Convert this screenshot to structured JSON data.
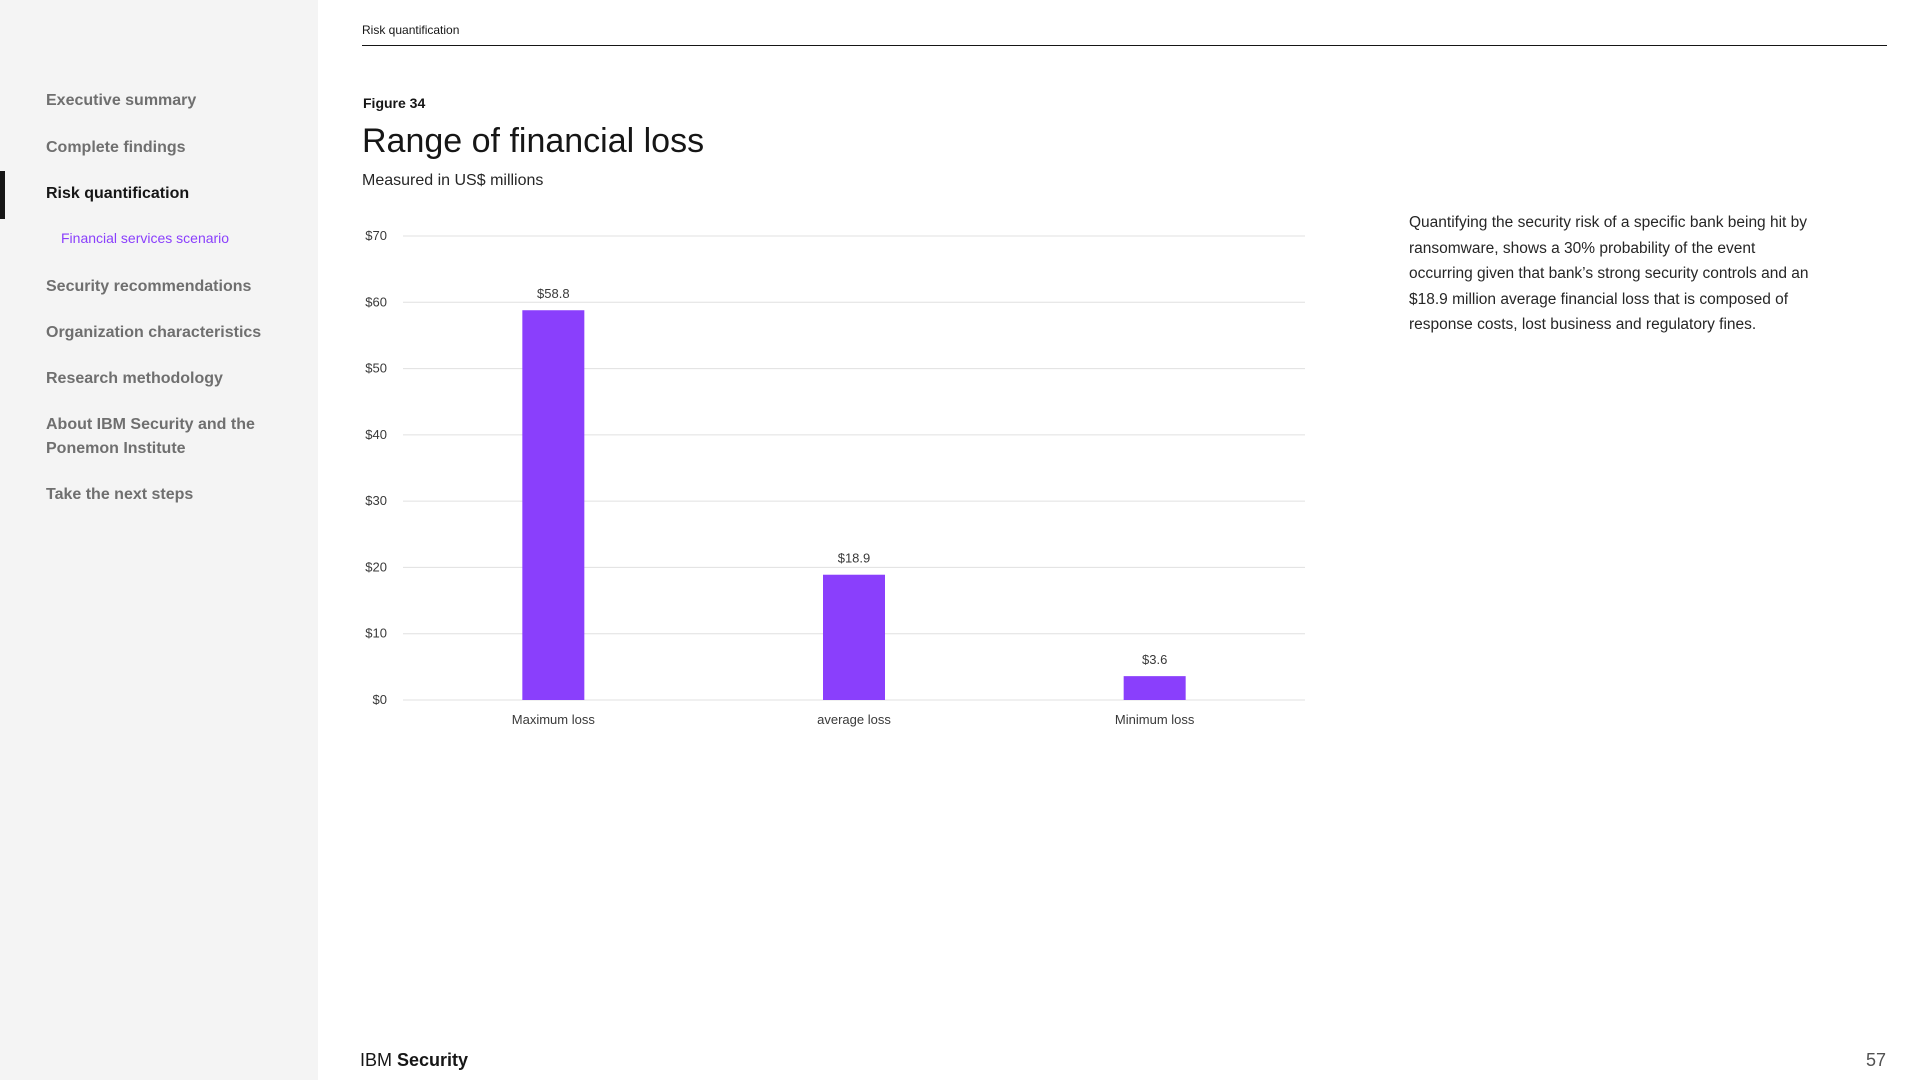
{
  "sidebar": {
    "items": [
      {
        "label": "Executive summary"
      },
      {
        "label": "Complete findings"
      },
      {
        "label": "Risk quantification"
      },
      {
        "label": "Financial services scenario"
      },
      {
        "label": "Security recommendations"
      },
      {
        "label": "Organization characteristics"
      },
      {
        "label": "Research methodology"
      },
      {
        "label": "About IBM Security and the Ponemon Institute"
      },
      {
        "label": "Take the next steps"
      }
    ]
  },
  "header": {
    "breadcrumb": "Risk quantification"
  },
  "figure": {
    "label": "Figure 34"
  },
  "description": "Quantifying the security risk of a specific bank being hit by ransomware, shows a 30% probability of the event occurring given that bank’s strong security controls and an $18.9 million average financial loss that is composed of response costs, lost business and regulatory fines.",
  "footer": {
    "logo_light": "IBM ",
    "logo_bold": "Security",
    "page_number": "57"
  },
  "colors": {
    "bar": "#8a3ffc",
    "active_nav": "#161616",
    "sub_nav": "#8a3ffc",
    "grid": "#e0e0e0"
  },
  "chart_data": {
    "type": "bar",
    "title": "Range of financial loss",
    "subtitle": "Measured in US$ millions",
    "categories": [
      "Maximum loss",
      "average loss",
      "Minimum loss"
    ],
    "values": [
      58.8,
      18.9,
      3.6
    ],
    "data_labels": [
      "$58.8",
      "$18.9",
      "$3.6"
    ],
    "ylim": [
      0,
      70
    ],
    "yticks": [
      0,
      10,
      20,
      30,
      40,
      50,
      60,
      70
    ],
    "ytick_labels": [
      "$0",
      "$10",
      "$20",
      "$30",
      "$40",
      "$50",
      "$60",
      "$70"
    ],
    "grid": true,
    "legend": "none"
  }
}
